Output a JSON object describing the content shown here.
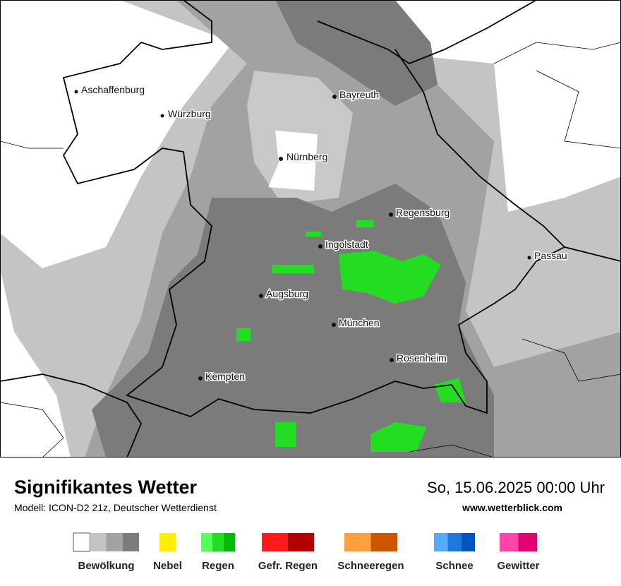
{
  "map": {
    "cities": [
      "Aschaffenburg",
      "Würzburg",
      "Bayreuth",
      "Nürnberg",
      "Regensburg",
      "Ingolstadt",
      "Passau",
      "Augsburg",
      "München",
      "Rosenheim",
      "Kempten"
    ]
  },
  "footer": {
    "title": "Signifikantes Wetter",
    "model": "Modell: ICON-D2 21z, Deutscher Wetterdienst",
    "datetime": "So, 15.06.2025 00:00 Uhr",
    "website": "www.wetterblick.com"
  },
  "legend": [
    {
      "label": "Bewölkung",
      "colors": [
        "#ffffff",
        "#c4c4c4",
        "#a2a2a2",
        "#7b7b7b"
      ]
    },
    {
      "label": "Nebel",
      "colors": [
        "#ffee00"
      ]
    },
    {
      "label": "Regen",
      "colors": [
        "#55ff55",
        "#22dd22",
        "#00bb00"
      ]
    },
    {
      "label": "Gefr. Regen",
      "colors": [
        "#ff1a1a",
        "#b30000"
      ]
    },
    {
      "label": "Schneeregen",
      "colors": [
        "#ffa040",
        "#cc5500"
      ]
    },
    {
      "label": "Schnee",
      "colors": [
        "#55aaff",
        "#1f77e0",
        "#0055bb"
      ]
    },
    {
      "label": "Gewitter",
      "colors": [
        "#ff44aa",
        "#e0006f"
      ]
    }
  ]
}
